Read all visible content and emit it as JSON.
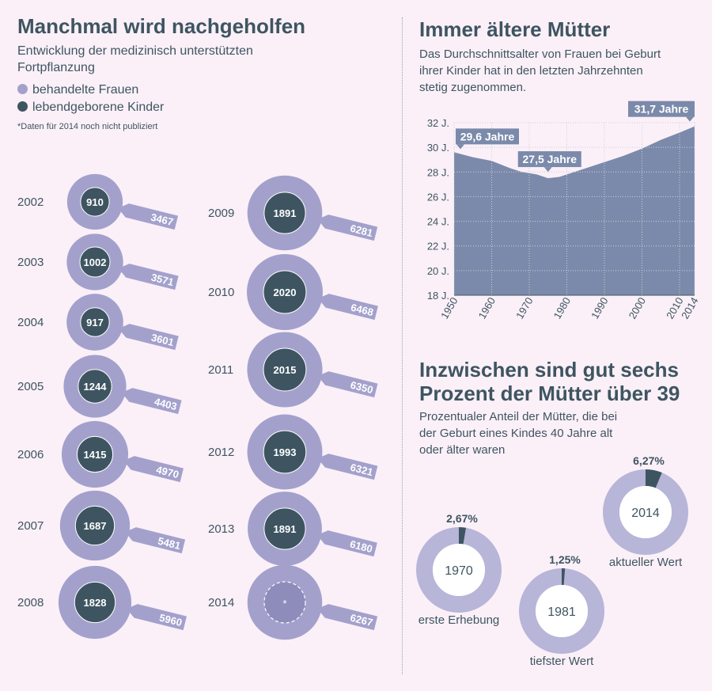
{
  "left": {
    "title": "Manchmal wird nachgeholfen",
    "subtitle": "Entwicklung der medizinisch unterstützten Fortpflanzung",
    "legend": [
      {
        "label": "behandelte Frauen",
        "color": "#a3a1cc"
      },
      {
        "label": "lebendgeborene Kinder",
        "color": "#3e5561"
      }
    ],
    "note": "*Daten für 2014 noch nicht publiziert"
  },
  "chart_data": [
    {
      "type": "bubble",
      "series": [
        {
          "name": "behandelte Frauen",
          "values": [
            3467,
            3571,
            3601,
            4403,
            4970,
            5481,
            5960,
            6281,
            6468,
            6350,
            6321,
            6180,
            6267
          ]
        },
        {
          "name": "lebendgeborene Kinder",
          "values": [
            910,
            1002,
            917,
            1244,
            1415,
            1687,
            1828,
            1891,
            2020,
            2015,
            1993,
            1891,
            null
          ]
        }
      ],
      "categories": [
        "2002",
        "2003",
        "2004",
        "2005",
        "2006",
        "2007",
        "2008",
        "2009",
        "2010",
        "2011",
        "2012",
        "2013",
        "2014"
      ],
      "missing_label": "*"
    },
    {
      "type": "area",
      "title": "Immer ältere Mütter",
      "subtitle": "Das Durchschnittsalter von Frauen bei Geburt ihrer Kinder hat in den letzten Jahrzehnten stetig zugenommen.",
      "x": [
        1950,
        1955,
        1960,
        1965,
        1968,
        1972,
        1975,
        1978,
        1980,
        1985,
        1990,
        1995,
        2000,
        2005,
        2010,
        2014
      ],
      "y": [
        29.6,
        29.2,
        28.9,
        28.3,
        28.0,
        27.8,
        27.5,
        27.6,
        27.8,
        28.3,
        28.8,
        29.3,
        29.9,
        30.6,
        31.2,
        31.7
      ],
      "xticks": [
        "1950",
        "1960",
        "1970",
        "1980",
        "1990",
        "2000",
        "2010",
        "2014"
      ],
      "yticks": [
        "18 J.",
        "20 J.",
        "22 J.",
        "24 J.",
        "26 J.",
        "28 J.",
        "30 J.",
        "32 J."
      ],
      "ylim": [
        18,
        32
      ],
      "xlim": [
        1950,
        2014
      ],
      "grid": true,
      "annotations": [
        {
          "label": "29,6 Jahre",
          "x": 1950,
          "y": 29.6
        },
        {
          "label": "27,5 Jahre",
          "x": 1975,
          "y": 27.5
        },
        {
          "label": "31,7 Jahre",
          "x": 2014,
          "y": 31.7
        }
      ],
      "fill": "#7b8aaa"
    },
    {
      "type": "pie",
      "title": "Inzwischen sind gut sechs Prozent der Mütter über 39",
      "subtitle": "Prozentualer Anteil der Mütter, die bei der Geburt eines Kindes 40 Jahre alt oder älter waren",
      "items": [
        {
          "year": "1970",
          "value": 2.67,
          "value_label": "2,67%",
          "caption": "erste Erhebung"
        },
        {
          "year": "1981",
          "value": 1.25,
          "value_label": "1,25%",
          "caption": "tiefster Wert"
        },
        {
          "year": "2014",
          "value": 6.27,
          "value_label": "6,27%",
          "caption": "aktueller Wert"
        }
      ]
    }
  ]
}
